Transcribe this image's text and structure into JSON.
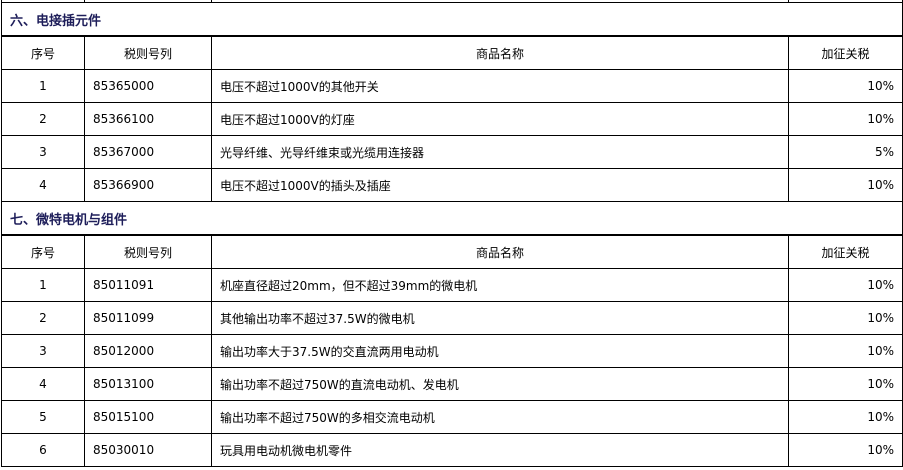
{
  "sections": [
    {
      "title": "六、电接插元件",
      "headers": [
        "序号",
        "税则号列",
        "商品名称",
        "加征关税"
      ],
      "rows": [
        [
          "1",
          "85365000",
          "电压不超过1000V的其他开关",
          "10%"
        ],
        [
          "2",
          "85366100",
          "电压不超过1000V的灯座",
          "10%"
        ],
        [
          "3",
          "85367000",
          "光导纤维、光导纤维束或光缆用连接器",
          "5%"
        ],
        [
          "4",
          "85366900",
          "电压不超过1000V的插头及插座",
          "10%"
        ]
      ]
    },
    {
      "title": "七、微特电机与组件",
      "headers": [
        "序号",
        "税则号列",
        "商品名称",
        "加征关税"
      ],
      "rows": [
        [
          "1",
          "85011091",
          "机座直径超过20mm，但不超过39mm的微电机",
          "10%"
        ],
        [
          "2",
          "85011099",
          "其他输出功率不超过37.5W的微电机",
          "10%"
        ],
        [
          "3",
          "85012000",
          "输出功率大于37.5W的交直流两用电动机",
          "10%"
        ],
        [
          "4",
          "85013100",
          "输出功率不超过750W的直流电动机、发电机",
          "10%"
        ],
        [
          "5",
          "85015100",
          "输出功率不超过750W的多相交流电动机",
          "10%"
        ],
        [
          "6",
          "85030010",
          "玩具用电动机微电机零件",
          "10%"
        ]
      ]
    }
  ]
}
